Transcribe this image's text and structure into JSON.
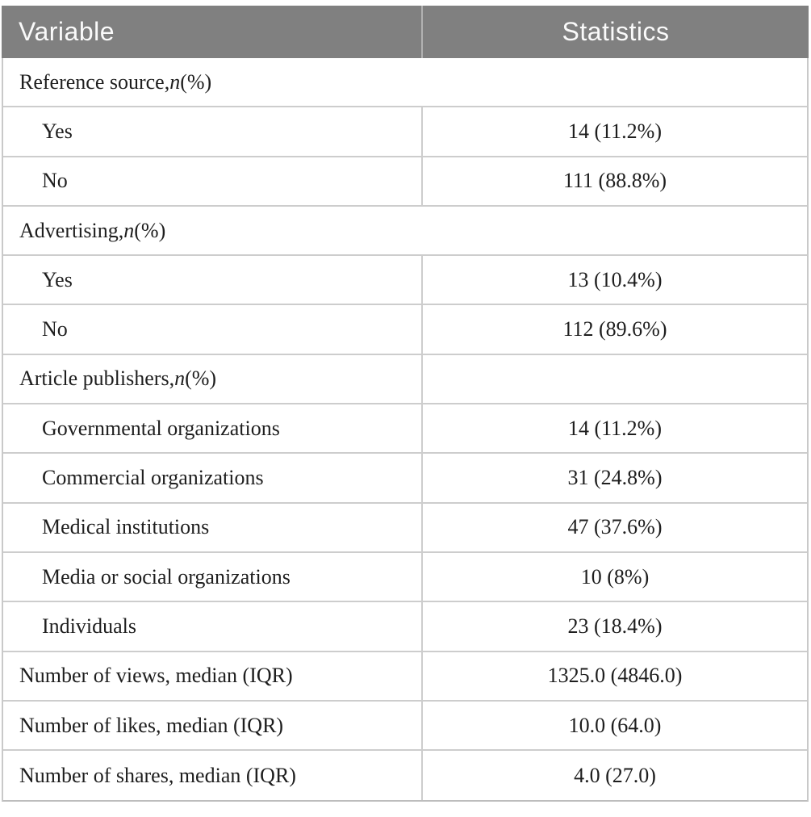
{
  "table": {
    "header": {
      "col1": "Variable",
      "col2": "Statistics"
    },
    "rows": [
      {
        "kind": "section-span",
        "prefix": "Reference source, ",
        "italic": "n",
        "suffix": " (%)"
      },
      {
        "kind": "sub",
        "label": "Yes",
        "value": "14 (11.2%)"
      },
      {
        "kind": "sub",
        "label": "No",
        "value": "111 (88.8%)"
      },
      {
        "kind": "section-span",
        "prefix": "Advertising, ",
        "italic": "n",
        "suffix": " (%)"
      },
      {
        "kind": "sub",
        "label": "Yes",
        "value": "13 (10.4%)"
      },
      {
        "kind": "sub",
        "label": "No",
        "value": "112 (89.6%)"
      },
      {
        "kind": "section-two-cell",
        "prefix": "Article publishers, ",
        "italic": "n",
        "suffix": " (%)",
        "value": ""
      },
      {
        "kind": "sub",
        "label": "Governmental organizations",
        "value": "14 (11.2%)"
      },
      {
        "kind": "sub",
        "label": "Commercial organizations",
        "value": "31 (24.8%)"
      },
      {
        "kind": "sub",
        "label": "Medical institutions",
        "value": "47 (37.6%)"
      },
      {
        "kind": "sub",
        "label": "Media or social organizations",
        "value": "10 (8%)"
      },
      {
        "kind": "sub",
        "label": "Individuals",
        "value": "23 (18.4%)"
      },
      {
        "kind": "metric",
        "label": "Number of views, median (IQR)",
        "value": "1325.0 (4846.0)"
      },
      {
        "kind": "metric",
        "label": "Number of likes, median (IQR)",
        "value": "10.0 (64.0)"
      },
      {
        "kind": "metric",
        "label": "Number of shares, median (IQR)",
        "value": "4.0 (27.0)"
      }
    ],
    "colors": {
      "header_bg": "#808080",
      "header_text": "#fafafa",
      "grid_border": "#cdcdcd",
      "body_text": "#1e1e1e"
    }
  }
}
